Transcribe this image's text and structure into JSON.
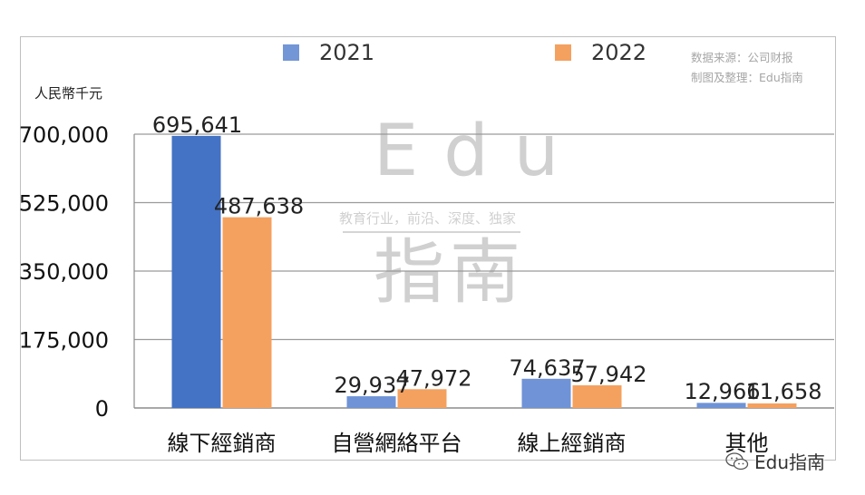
{
  "chart_data": {
    "type": "bar",
    "categories": [
      "線下經銷商",
      "自營網絡平台",
      "線上經銷商",
      "其他"
    ],
    "series": [
      {
        "name": "2021",
        "values": [
          695641,
          29937,
          74637,
          12966
        ],
        "labels": [
          "695,641",
          "29,937",
          "74,637",
          "12,966"
        ],
        "color": "#4472c4"
      },
      {
        "name": "2022",
        "values": [
          487638,
          47972,
          57942,
          11658
        ],
        "labels": [
          "487,638",
          "47,972",
          "57,942",
          "11,658"
        ],
        "color": "#f4a15f"
      }
    ],
    "ylim": [
      0,
      700000
    ],
    "yticks": [
      0,
      175000,
      350000,
      525000,
      700000
    ],
    "ytick_labels": [
      "0",
      "175,000",
      "350,000",
      "525,000",
      "700,000"
    ],
    "ylabel": "人民幣千元",
    "grid": true,
    "legend": "top"
  },
  "source_lines": [
    "数据来源：公司财报",
    "制图及整理：Edu指南"
  ],
  "watermark": {
    "big": "Edu",
    "sub": "教育行业，前沿、深度、独家",
    "cn": "指南"
  },
  "brand": "Edu指南"
}
